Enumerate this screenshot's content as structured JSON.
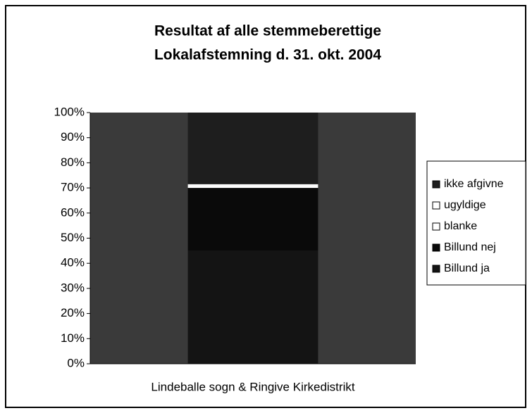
{
  "chart_data": {
    "type": "bar_stacked_percent",
    "title": [
      "Resultat af alle stemmeberettige",
      "Lokalafstemning d. 31. okt. 2004"
    ],
    "categories": [
      "Lindeballe sogn & Ringive Kirkedistrikt"
    ],
    "series": [
      {
        "name": "Billund ja",
        "color": "#141414",
        "values": [
          45
        ]
      },
      {
        "name": "Billund nej",
        "color": "#0a0a0a",
        "values": [
          25
        ]
      },
      {
        "name": "blanke",
        "color": "#ffffff",
        "values": [
          1
        ]
      },
      {
        "name": "ugyldige",
        "color": "#ffffff",
        "values": [
          0.5
        ]
      },
      {
        "name": "ikke afgivne",
        "color": "#1e1e1e",
        "values": [
          28.5
        ]
      }
    ],
    "ylim": [
      0,
      100
    ],
    "yticks": [
      {
        "value": 0,
        "label": "0%"
      },
      {
        "value": 10,
        "label": "10%"
      },
      {
        "value": 20,
        "label": "20%"
      },
      {
        "value": 30,
        "label": "30%"
      },
      {
        "value": 40,
        "label": "40%"
      },
      {
        "value": 50,
        "label": "50%"
      },
      {
        "value": 60,
        "label": "60%"
      },
      {
        "value": 70,
        "label": "70%"
      },
      {
        "value": 80,
        "label": "80%"
      },
      {
        "value": 90,
        "label": "90%"
      },
      {
        "value": 100,
        "label": "100%"
      }
    ],
    "plot_background": "#3a3a3a",
    "legend": "right"
  }
}
